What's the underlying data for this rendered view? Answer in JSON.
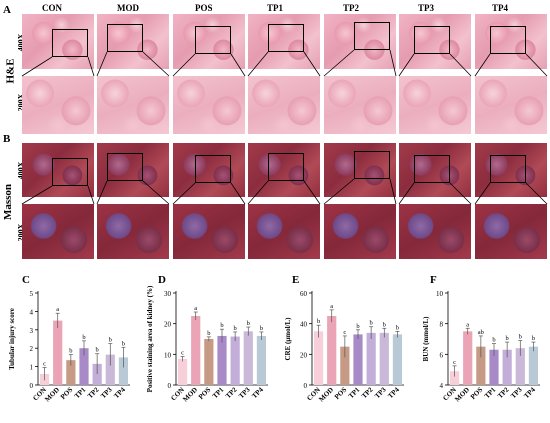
{
  "panel_letters": {
    "A": "A",
    "B": "B",
    "C": "C",
    "D": "D",
    "E": "E",
    "F": "F"
  },
  "groups": [
    "CON",
    "MOD",
    "POS",
    "TP1",
    "TP2",
    "TP3",
    "TP4"
  ],
  "row_labels": {
    "he": "H&E",
    "masson": "Masson",
    "mag_high": "400X",
    "mag_low": "200X"
  },
  "colors": {
    "CON": "#f6cfd8",
    "MOD": "#eaa4b6",
    "POS": "#c79a86",
    "TP1": "#a98ac8",
    "TP2": "#c2aed8",
    "TP3": "#c9b8d8",
    "TP4": "#b9c9d6"
  },
  "chart_data": [
    {
      "type": "bar",
      "panel": "C",
      "title": "",
      "xlabel": "",
      "ylabel": "Tubular injury score",
      "categories": [
        "CON",
        "MOD",
        "POS",
        "TP1",
        "TP2",
        "TP3",
        "TP4"
      ],
      "values": [
        0.6,
        3.5,
        1.35,
        2.0,
        1.15,
        1.65,
        1.5
      ],
      "errors": [
        0.35,
        0.4,
        0.3,
        0.4,
        0.55,
        0.6,
        0.55
      ],
      "letters": [
        "c",
        "a",
        "b",
        "b",
        "b",
        "b",
        "b"
      ],
      "ylim": [
        0,
        5
      ],
      "yticks": [
        0,
        1,
        2,
        3,
        4,
        5
      ]
    },
    {
      "type": "bar",
      "panel": "D",
      "title": "",
      "xlabel": "",
      "ylabel": "Positive staining area of kidney (%)",
      "categories": [
        "CON",
        "MOD",
        "POS",
        "TP1",
        "TP2",
        "TP3",
        "TP4"
      ],
      "values": [
        8.5,
        22.5,
        15.0,
        16.0,
        15.8,
        17.5,
        16.0
      ],
      "errors": [
        0.8,
        1.3,
        0.7,
        2.2,
        1.5,
        1.4,
        1.3
      ],
      "letters": [
        "c",
        "a",
        "b",
        "b",
        "b",
        "b",
        "b"
      ],
      "ylim": [
        0,
        30
      ],
      "yticks": [
        0,
        10,
        20,
        30
      ]
    },
    {
      "type": "bar",
      "panel": "E",
      "title": "",
      "xlabel": "",
      "ylabel": "CRE (μmol/L)",
      "categories": [
        "CON",
        "MOD",
        "POS",
        "TP1",
        "TP2",
        "TP3",
        "TP4"
      ],
      "values": [
        35,
        45,
        25,
        33,
        34,
        34,
        33
      ],
      "errors": [
        4,
        4,
        7,
        3,
        4,
        3,
        2
      ],
      "letters": [
        "b",
        "a",
        "c",
        "b",
        "b",
        "b",
        "b"
      ],
      "ylim": [
        0,
        60
      ],
      "yticks": [
        0,
        20,
        40,
        60
      ]
    },
    {
      "type": "bar",
      "panel": "F",
      "title": "",
      "xlabel": "",
      "ylabel": "BUN (mmol/L)",
      "categories": [
        "CON",
        "MOD",
        "POS",
        "TP1",
        "TP2",
        "TP3",
        "TP4"
      ],
      "values": [
        4.9,
        7.5,
        6.5,
        6.3,
        6.3,
        6.4,
        6.5
      ],
      "errors": [
        0.35,
        0.2,
        0.7,
        0.4,
        0.5,
        0.5,
        0.3
      ],
      "letters": [
        "c",
        "a",
        "ab",
        "b",
        "b",
        "b",
        "b"
      ],
      "ylim": [
        4,
        10
      ],
      "yticks": [
        4,
        6,
        8,
        10
      ]
    }
  ]
}
